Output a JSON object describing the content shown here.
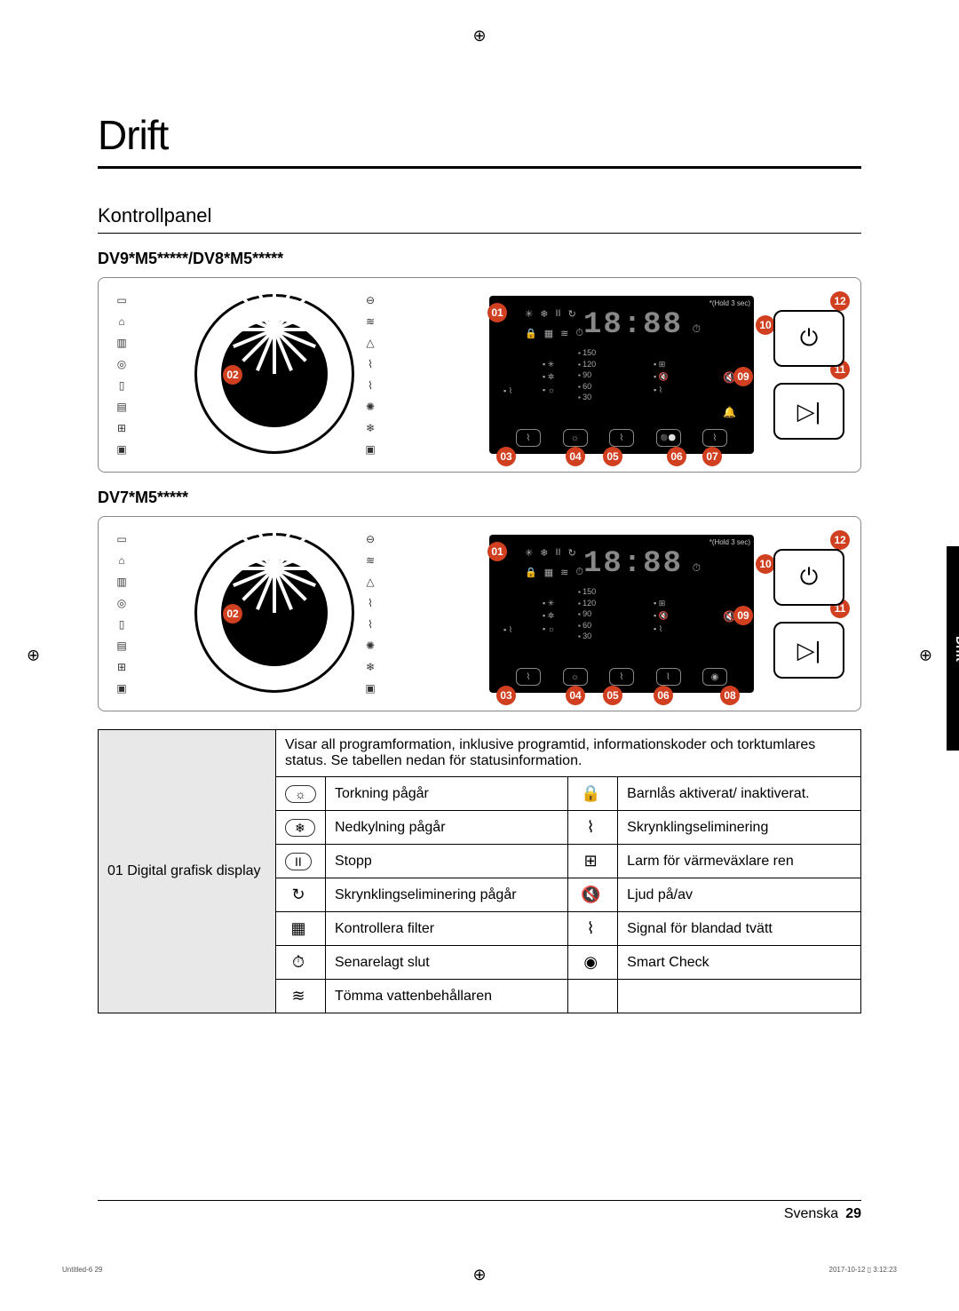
{
  "page": {
    "title": "Drift",
    "section_heading": "Kontrollpanel",
    "side_tab_label": "Drift",
    "footer_language": "Svenska",
    "footer_page": "29",
    "tiny_footer_left": "Untitled-6   29",
    "tiny_footer_right": "2017-10-12   ▯ 3:12:23"
  },
  "models": {
    "a": "DV9*M5*****/DV8*M5*****",
    "b": "DV7*M5*****"
  },
  "display": {
    "hold_label": "*(Hold 3 sec)",
    "clock": "18:88",
    "temp_values": [
      "150",
      "120",
      "90",
      "60",
      "30"
    ]
  },
  "callouts": {
    "c01": "01",
    "c02": "02",
    "c03": "03",
    "c04": "04",
    "c05": "05",
    "c06": "06",
    "c07": "07",
    "c08": "08",
    "c09": "09",
    "c10": "10",
    "c11": "11",
    "c12": "12"
  },
  "table": {
    "row_head": "01 Digital grafisk display",
    "top_desc": "Visar all programformation, inklusive programtid, informationskoder och torktumlares status. Se tabellen nedan för statusinformation.",
    "rows_left": [
      {
        "icon": "☼",
        "boxed": true,
        "label": "Torkning pågår"
      },
      {
        "icon": "❄",
        "boxed": true,
        "label": "Nedkylning pågår"
      },
      {
        "icon": "II",
        "boxed": true,
        "label": "Stopp"
      },
      {
        "icon": "↻",
        "boxed": false,
        "label": "Skrynklingseliminering pågår"
      },
      {
        "icon": "▦",
        "boxed": false,
        "label": "Kontrollera filter"
      },
      {
        "icon": "⏱",
        "boxed": false,
        "label": "Senarelagt slut"
      },
      {
        "icon": "≋",
        "boxed": false,
        "label": "Tömma vattenbehållaren"
      }
    ],
    "rows_right": [
      {
        "icon": "🔒",
        "boxed": false,
        "label": "Barnlås aktiverat/ inaktiverat."
      },
      {
        "icon": "⌇",
        "boxed": false,
        "label": "Skrynklingseliminering"
      },
      {
        "icon": "⊞",
        "boxed": false,
        "label": "Larm för värmeväxlare ren"
      },
      {
        "icon": "🔇",
        "boxed": false,
        "label": "Ljud på/av"
      },
      {
        "icon": "⌇",
        "boxed": false,
        "label": "Signal för blandad tvätt"
      },
      {
        "icon": "◉",
        "boxed": false,
        "label": "Smart Check"
      },
      {
        "icon": "",
        "boxed": false,
        "label": ""
      }
    ]
  },
  "colors": {
    "callout_bg": "#d04020",
    "callout_fg": "#ffffff",
    "panel_bg": "#000000",
    "text": "#000000",
    "row_head_bg": "#e8e8e8"
  }
}
